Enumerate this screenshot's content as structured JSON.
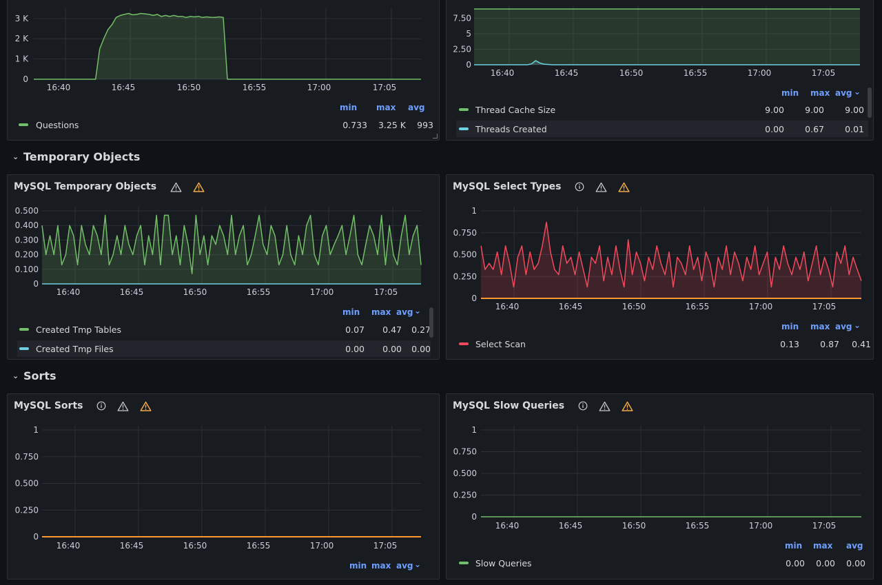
{
  "rows": [
    {
      "title": "Temporary Objects"
    },
    {
      "title": "Sorts"
    }
  ],
  "time_ticks": [
    "16:40",
    "16:45",
    "16:50",
    "16:55",
    "17:00",
    "17:05"
  ],
  "colors": {
    "green": "#73bf69",
    "cyan": "#6ed0e0",
    "red": "#f2495c",
    "orange": "#ff9830",
    "legend_head": "#6e9fff",
    "warn": "#f2a948"
  },
  "panels": {
    "questions": {
      "title": "",
      "y_ticks": [
        "3 K",
        "2 K",
        "1 K",
        "0"
      ],
      "legend_headers": [
        "min",
        "max",
        "avg"
      ],
      "series": [
        {
          "name": "Questions",
          "min": "0.733",
          "max": "3.25 K",
          "avg": "993",
          "color": "green"
        }
      ]
    },
    "threads": {
      "title": "",
      "y_ticks": [
        "7.50",
        "5",
        "2.50",
        "0"
      ],
      "legend_headers": [
        "min",
        "max",
        "avg"
      ],
      "series": [
        {
          "name": "Thread Cache Size",
          "min": "9.00",
          "max": "9.00",
          "avg": "9.00",
          "color": "green"
        },
        {
          "name": "Threads Created",
          "min": "0.00",
          "max": "0.67",
          "avg": "0.01",
          "color": "cyan"
        }
      ]
    },
    "tmp": {
      "title": "MySQL Temporary Objects",
      "icons": [
        "warning-outline-icon",
        "warning-icon"
      ],
      "y_ticks": [
        "0.500",
        "0.400",
        "0.300",
        "0.200",
        "0.100",
        "0"
      ],
      "legend_headers": [
        "min",
        "max",
        "avg"
      ],
      "series": [
        {
          "name": "Created Tmp Tables",
          "min": "0.07",
          "max": "0.47",
          "avg": "0.27",
          "color": "green"
        },
        {
          "name": "Created Tmp Files",
          "min": "0.00",
          "max": "0.00",
          "avg": "0.00",
          "color": "cyan"
        }
      ]
    },
    "select": {
      "title": "MySQL Select Types",
      "icons": [
        "info-icon",
        "warning-outline-icon",
        "warning-icon"
      ],
      "y_ticks": [
        "1",
        "0.750",
        "0.500",
        "0.250",
        "0"
      ],
      "legend_headers": [
        "min",
        "max",
        "avg"
      ],
      "series": [
        {
          "name": "Select Scan",
          "min": "0.13",
          "max": "0.87",
          "avg": "0.41",
          "color": "red"
        }
      ]
    },
    "sorts": {
      "title": "MySQL Sorts",
      "icons": [
        "info-icon",
        "warning-outline-icon",
        "warning-icon"
      ],
      "y_ticks": [
        "1",
        "0.750",
        "0.500",
        "0.250",
        "0"
      ],
      "legend_headers": [
        "min",
        "max",
        "avg"
      ],
      "series": []
    },
    "slow": {
      "title": "MySQL Slow Queries",
      "icons": [
        "info-icon",
        "warning-outline-icon",
        "warning-icon"
      ],
      "y_ticks": [
        "1",
        "0.750",
        "0.500",
        "0.250",
        "0"
      ],
      "legend_headers": [
        "min",
        "max",
        "avg"
      ],
      "series": [
        {
          "name": "Slow Queries",
          "min": "0.00",
          "max": "0.00",
          "avg": "0.00",
          "color": "green"
        }
      ]
    }
  },
  "chart_data": [
    {
      "type": "area",
      "series": [
        {
          "name": "Questions",
          "values": [
            0,
            0,
            0,
            0,
            0,
            0,
            0,
            0,
            0,
            0,
            0,
            0,
            0,
            0,
            0,
            0,
            1500,
            2000,
            2450,
            2700,
            3050,
            3150,
            3200,
            3250,
            3180,
            3200,
            3250,
            3230,
            3200,
            3150,
            3200,
            3100,
            3150,
            3100,
            3150,
            3100,
            3100,
            3050,
            3100,
            3080,
            3100,
            3050,
            3080,
            3060,
            3050,
            3080,
            3050,
            0,
            0,
            0,
            0,
            0,
            0,
            0,
            0,
            0,
            0,
            0,
            0,
            0,
            0,
            0,
            0,
            0,
            0,
            0,
            0,
            0,
            0,
            0,
            0,
            0,
            0,
            0,
            0,
            0,
            0,
            0,
            0,
            0,
            0,
            0,
            0,
            0,
            0,
            0,
            0,
            0,
            0,
            0,
            0,
            0,
            0,
            0,
            0
          ]
        }
      ],
      "ylim": [
        0,
        3300
      ]
    },
    {
      "type": "area",
      "series": [
        {
          "name": "Thread Cache Size",
          "values": [
            9,
            9,
            9,
            9,
            9,
            9,
            9,
            9,
            9,
            9,
            9,
            9,
            9,
            9,
            9,
            9,
            9,
            9,
            9,
            9,
            9,
            9,
            9,
            9,
            9,
            9,
            9,
            9,
            9,
            9,
            9,
            9,
            9,
            9,
            9,
            9,
            9,
            9,
            9,
            9,
            9,
            9,
            9,
            9,
            9,
            9,
            9,
            9,
            9,
            9,
            9,
            9,
            9,
            9,
            9,
            9,
            9,
            9,
            9,
            9,
            9,
            9,
            9,
            9,
            9,
            9,
            9,
            9,
            9,
            9,
            9,
            9,
            9,
            9,
            9,
            9,
            9,
            9,
            9,
            9,
            9,
            9,
            9,
            9,
            9,
            9,
            9,
            9,
            9,
            9,
            9,
            9,
            9,
            9,
            9
          ]
        },
        {
          "name": "Threads Created",
          "values": [
            0,
            0,
            0,
            0,
            0,
            0,
            0,
            0,
            0,
            0,
            0,
            0,
            0,
            0,
            0.15,
            0.67,
            0.3,
            0.1,
            0.05,
            0,
            0,
            0,
            0,
            0,
            0,
            0,
            0,
            0,
            0,
            0,
            0,
            0,
            0,
            0,
            0,
            0,
            0,
            0,
            0,
            0,
            0,
            0,
            0,
            0,
            0,
            0,
            0,
            0,
            0,
            0,
            0,
            0,
            0,
            0,
            0,
            0,
            0,
            0,
            0,
            0,
            0,
            0,
            0,
            0,
            0,
            0,
            0,
            0,
            0,
            0,
            0,
            0,
            0,
            0,
            0,
            0,
            0,
            0,
            0,
            0,
            0,
            0,
            0,
            0,
            0,
            0,
            0,
            0,
            0,
            0,
            0,
            0,
            0,
            0,
            0
          ]
        }
      ],
      "ylim": [
        0,
        9
      ]
    },
    {
      "type": "area",
      "series": [
        {
          "name": "Created Tmp Tables",
          "values": [
            0.4,
            0.2,
            0.33,
            0.2,
            0.4,
            0.13,
            0.2,
            0.4,
            0.33,
            0.13,
            0.4,
            0.27,
            0.2,
            0.4,
            0.33,
            0.2,
            0.47,
            0.13,
            0.2,
            0.33,
            0.2,
            0.4,
            0.27,
            0.2,
            0.33,
            0.4,
            0.13,
            0.33,
            0.2,
            0.47,
            0.13,
            0.47,
            0.47,
            0.2,
            0.33,
            0.13,
            0.4,
            0.27,
            0.07,
            0.47,
            0.2,
            0.33,
            0.13,
            0.33,
            0.27,
            0.4,
            0.33,
            0.2,
            0.47,
            0.2,
            0.33,
            0.4,
            0.13,
            0.2,
            0.33,
            0.47,
            0.27,
            0.2,
            0.4,
            0.33,
            0.13,
            0.2,
            0.4,
            0.2,
            0.13,
            0.33,
            0.2,
            0.4,
            0.47,
            0.2,
            0.13,
            0.33,
            0.4,
            0.2,
            0.27,
            0.33,
            0.4,
            0.2,
            0.33,
            0.47,
            0.2,
            0.13,
            0.27,
            0.4,
            0.33,
            0.2,
            0.47,
            0.13,
            0.4,
            0.2,
            0.13,
            0.33,
            0.47,
            0.2,
            0.33,
            0.4,
            0.13
          ]
        },
        {
          "name": "Created Tmp Files",
          "values": [
            0,
            0,
            0,
            0,
            0,
            0,
            0,
            0,
            0,
            0,
            0,
            0,
            0,
            0,
            0,
            0,
            0,
            0,
            0,
            0,
            0,
            0,
            0,
            0,
            0,
            0,
            0,
            0,
            0,
            0,
            0,
            0,
            0,
            0,
            0,
            0,
            0,
            0,
            0,
            0,
            0,
            0,
            0,
            0,
            0,
            0,
            0,
            0,
            0,
            0,
            0,
            0,
            0,
            0,
            0,
            0,
            0,
            0,
            0,
            0,
            0,
            0,
            0,
            0,
            0,
            0,
            0,
            0,
            0,
            0,
            0,
            0,
            0,
            0,
            0,
            0,
            0,
            0,
            0,
            0,
            0,
            0,
            0,
            0,
            0,
            0,
            0,
            0,
            0,
            0,
            0,
            0,
            0,
            0,
            0,
            0,
            0
          ]
        }
      ],
      "ylim": [
        0,
        0.5
      ]
    },
    {
      "type": "area",
      "series": [
        {
          "name": "Select Scan",
          "values": [
            0.6,
            0.33,
            0.4,
            0.33,
            0.53,
            0.27,
            0.6,
            0.4,
            0.13,
            0.47,
            0.6,
            0.27,
            0.53,
            0.33,
            0.4,
            0.6,
            0.87,
            0.53,
            0.33,
            0.27,
            0.6,
            0.4,
            0.47,
            0.27,
            0.53,
            0.33,
            0.13,
            0.47,
            0.4,
            0.6,
            0.2,
            0.47,
            0.27,
            0.6,
            0.33,
            0.13,
            0.67,
            0.27,
            0.53,
            0.4,
            0.2,
            0.47,
            0.33,
            0.6,
            0.4,
            0.27,
            0.53,
            0.13,
            0.47,
            0.4,
            0.27,
            0.6,
            0.33,
            0.47,
            0.2,
            0.53,
            0.4,
            0.13,
            0.47,
            0.33,
            0.6,
            0.27,
            0.53,
            0.4,
            0.2,
            0.47,
            0.33,
            0.6,
            0.27,
            0.4,
            0.53,
            0.13,
            0.47,
            0.33,
            0.6,
            0.4,
            0.27,
            0.47,
            0.33,
            0.53,
            0.2,
            0.4,
            0.6,
            0.27,
            0.47,
            0.33,
            0.13,
            0.53,
            0.4,
            0.6,
            0.27,
            0.47,
            0.33,
            0.2
          ]
        }
      ],
      "ylim": [
        0,
        1
      ]
    },
    {
      "type": "line",
      "series": [],
      "ylim": [
        0,
        1
      ]
    },
    {
      "type": "line",
      "series": [
        {
          "name": "Slow Queries",
          "values": [
            0,
            0,
            0,
            0,
            0,
            0,
            0,
            0,
            0,
            0,
            0,
            0,
            0,
            0,
            0,
            0,
            0,
            0,
            0,
            0,
            0,
            0,
            0,
            0,
            0,
            0,
            0,
            0,
            0,
            0,
            0,
            0,
            0,
            0,
            0,
            0,
            0,
            0,
            0,
            0,
            0,
            0,
            0,
            0,
            0,
            0,
            0,
            0,
            0,
            0,
            0,
            0,
            0,
            0,
            0,
            0,
            0,
            0,
            0,
            0,
            0,
            0,
            0,
            0,
            0,
            0,
            0,
            0,
            0,
            0,
            0,
            0,
            0,
            0,
            0,
            0,
            0,
            0,
            0,
            0,
            0,
            0,
            0,
            0,
            0,
            0,
            0,
            0,
            0,
            0,
            0,
            0,
            0,
            0,
            0
          ]
        }
      ],
      "ylim": [
        0,
        1
      ]
    }
  ]
}
